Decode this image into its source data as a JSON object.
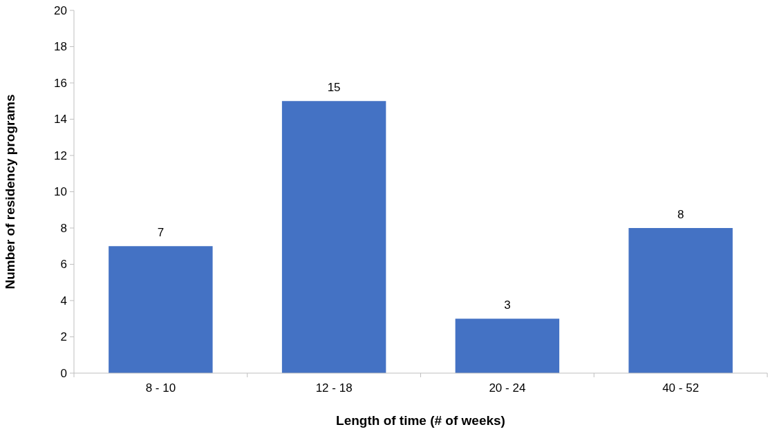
{
  "chart_data": {
    "type": "bar",
    "xlabel": "Length of time (# of weeks)",
    "ylabel": "Number of residency programs",
    "categories": [
      "8 - 10",
      "12 - 18",
      "20 - 24",
      "40 - 52"
    ],
    "values": [
      7,
      15,
      3,
      8
    ],
    "color": "#4472c4",
    "ylim": [
      0,
      20
    ],
    "yticks": [
      0,
      2,
      4,
      6,
      8,
      10,
      12,
      14,
      16,
      18,
      20
    ],
    "data_labels": true
  }
}
